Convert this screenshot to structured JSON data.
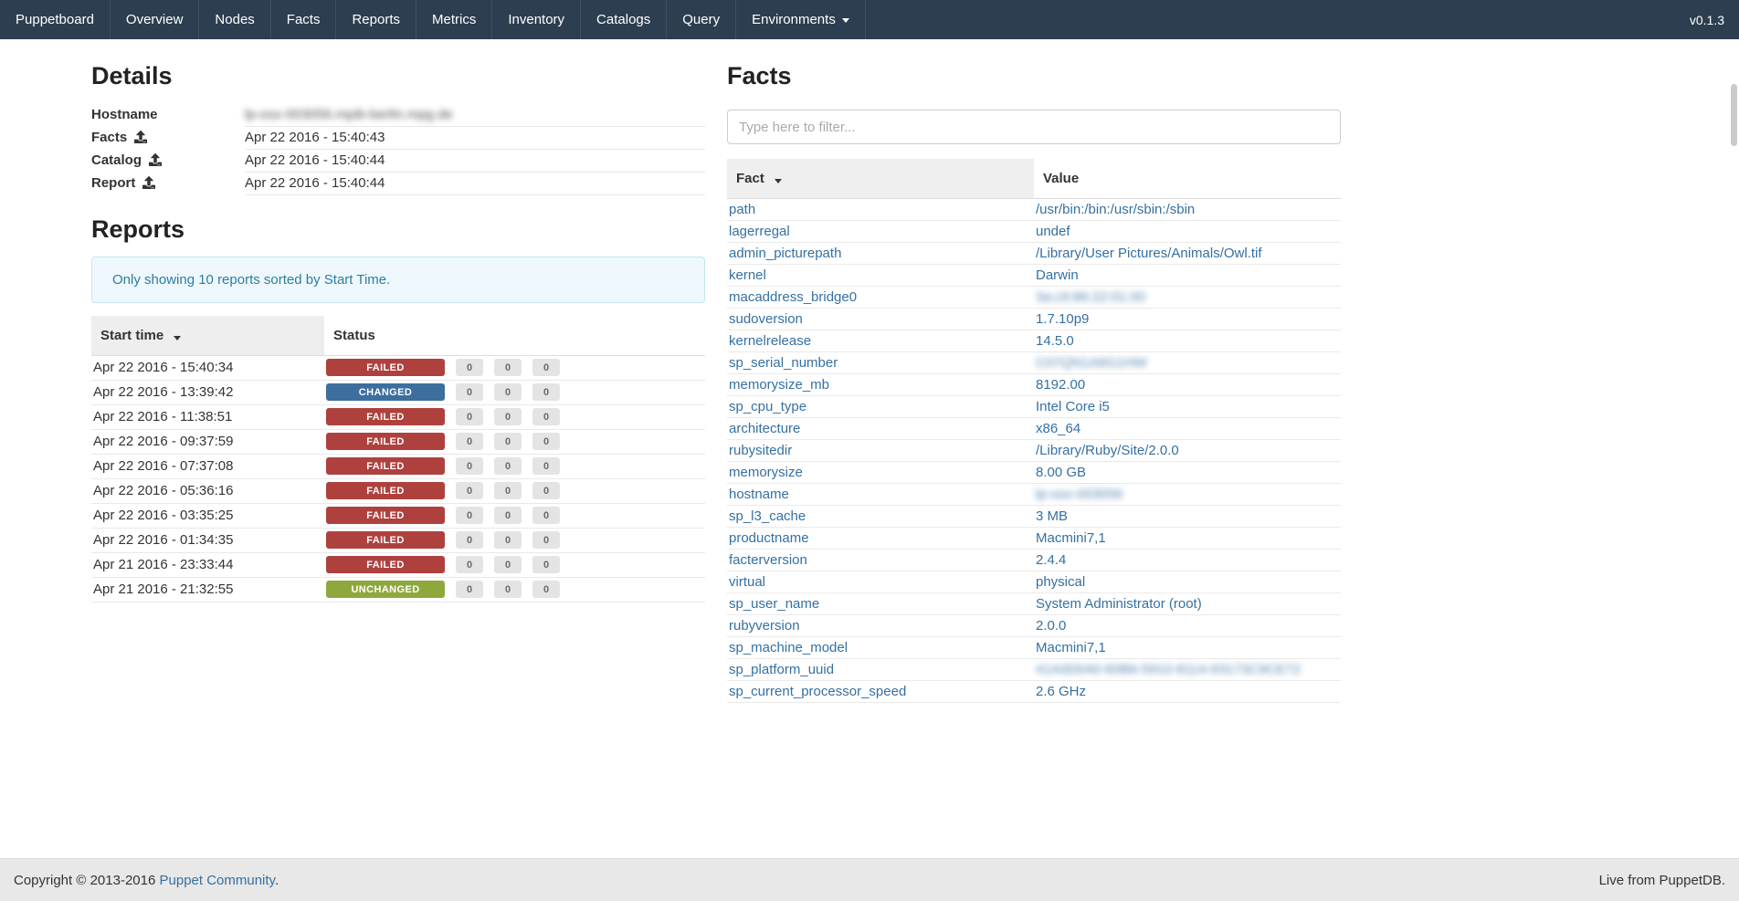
{
  "navbar": {
    "brand": "Puppetboard",
    "items": [
      "Overview",
      "Nodes",
      "Facts",
      "Reports",
      "Metrics",
      "Inventory",
      "Catalogs",
      "Query"
    ],
    "environments_label": "Environments",
    "version": "v0.1.3"
  },
  "details": {
    "title": "Details",
    "rows": [
      {
        "label": "Hostname",
        "icon": null,
        "value": "lp-osx-003056.mpib-berlin.mpg.de",
        "blurred": true
      },
      {
        "label": "Facts",
        "icon": "upload-icon",
        "value": "Apr 22 2016 - 15:40:43",
        "blurred": false
      },
      {
        "label": "Catalog",
        "icon": "upload-icon",
        "value": "Apr 22 2016 - 15:40:44",
        "blurred": false
      },
      {
        "label": "Report",
        "icon": "upload-icon",
        "value": "Apr 22 2016 - 15:40:44",
        "blurred": false
      }
    ]
  },
  "reports": {
    "title": "Reports",
    "alert": "Only showing 10 reports sorted by Start Time.",
    "columns": [
      "Start time",
      "Status"
    ],
    "rows": [
      {
        "start_time": "Apr 22 2016 - 15:40:34",
        "status": "FAILED",
        "counts": [
          "0",
          "0",
          "0"
        ]
      },
      {
        "start_time": "Apr 22 2016 - 13:39:42",
        "status": "CHANGED",
        "counts": [
          "0",
          "0",
          "0"
        ]
      },
      {
        "start_time": "Apr 22 2016 - 11:38:51",
        "status": "FAILED",
        "counts": [
          "0",
          "0",
          "0"
        ]
      },
      {
        "start_time": "Apr 22 2016 - 09:37:59",
        "status": "FAILED",
        "counts": [
          "0",
          "0",
          "0"
        ]
      },
      {
        "start_time": "Apr 22 2016 - 07:37:08",
        "status": "FAILED",
        "counts": [
          "0",
          "0",
          "0"
        ]
      },
      {
        "start_time": "Apr 22 2016 - 05:36:16",
        "status": "FAILED",
        "counts": [
          "0",
          "0",
          "0"
        ]
      },
      {
        "start_time": "Apr 22 2016 - 03:35:25",
        "status": "FAILED",
        "counts": [
          "0",
          "0",
          "0"
        ]
      },
      {
        "start_time": "Apr 22 2016 - 01:34:35",
        "status": "FAILED",
        "counts": [
          "0",
          "0",
          "0"
        ]
      },
      {
        "start_time": "Apr 21 2016 - 23:33:44",
        "status": "FAILED",
        "counts": [
          "0",
          "0",
          "0"
        ]
      },
      {
        "start_time": "Apr 21 2016 - 21:32:55",
        "status": "UNCHANGED",
        "counts": [
          "0",
          "0",
          "0"
        ]
      }
    ]
  },
  "facts": {
    "title": "Facts",
    "filter_placeholder": "Type here to filter...",
    "columns": [
      "Fact",
      "Value"
    ],
    "rows": [
      {
        "fact": "path",
        "value": "/usr/bin:/bin:/usr/sbin:/sbin",
        "blurred": false
      },
      {
        "fact": "lagerregal",
        "value": "undef",
        "blurred": false
      },
      {
        "fact": "admin_picturepath",
        "value": "/Library/User Pictures/Animals/Owl.tif",
        "blurred": false
      },
      {
        "fact": "kernel",
        "value": "Darwin",
        "blurred": false
      },
      {
        "fact": "macaddress_bridge0",
        "value": "3a:c9:86:22:01:00",
        "blurred": true
      },
      {
        "fact": "sudoversion",
        "value": "1.7.10p9",
        "blurred": false
      },
      {
        "fact": "kernelrelease",
        "value": "14.5.0",
        "blurred": false
      },
      {
        "fact": "sp_serial_number",
        "value": "C07QN1A6G1HW",
        "blurred": true
      },
      {
        "fact": "memorysize_mb",
        "value": "8192.00",
        "blurred": false
      },
      {
        "fact": "sp_cpu_type",
        "value": "Intel Core i5",
        "blurred": false
      },
      {
        "fact": "architecture",
        "value": "x86_64",
        "blurred": false
      },
      {
        "fact": "rubysitedir",
        "value": "/Library/Ruby/Site/2.0.0",
        "blurred": false
      },
      {
        "fact": "memorysize",
        "value": "8.00 GB",
        "blurred": false
      },
      {
        "fact": "hostname",
        "value": "lp-osx-003056",
        "blurred": true
      },
      {
        "fact": "sp_l3_cache",
        "value": "3 MB",
        "blurred": false
      },
      {
        "fact": "productname",
        "value": "Macmini7,1",
        "blurred": false
      },
      {
        "fact": "facterversion",
        "value": "2.4.4",
        "blurred": false
      },
      {
        "fact": "virtual",
        "value": "physical",
        "blurred": false
      },
      {
        "fact": "sp_user_name",
        "value": "System Administrator (root)",
        "blurred": false
      },
      {
        "fact": "rubyversion",
        "value": "2.0.0",
        "blurred": false
      },
      {
        "fact": "sp_machine_model",
        "value": "Macmini7,1",
        "blurred": false
      },
      {
        "fact": "sp_platform_uuid",
        "value": "41A0D040-60B6-5910-8114-93173C9CE72",
        "blurred": true
      },
      {
        "fact": "sp_current_processor_speed",
        "value": "2.6 GHz",
        "blurred": false
      }
    ]
  },
  "footer": {
    "text_prefix": "Copyright © 2013-2016 ",
    "link_label": "Puppet Community",
    "text_suffix": ".",
    "right_text": "Live from PuppetDB."
  },
  "colors": {
    "navbar": "#2c3e50",
    "link": "#3470a3",
    "status_failed": "#ae413e",
    "status_changed": "#3c6e9e",
    "status_unchanged": "#8fa83e",
    "alert_bg": "#eef8fc",
    "alert_border": "#c3e6f2",
    "alert_text": "#2e7ca0"
  }
}
